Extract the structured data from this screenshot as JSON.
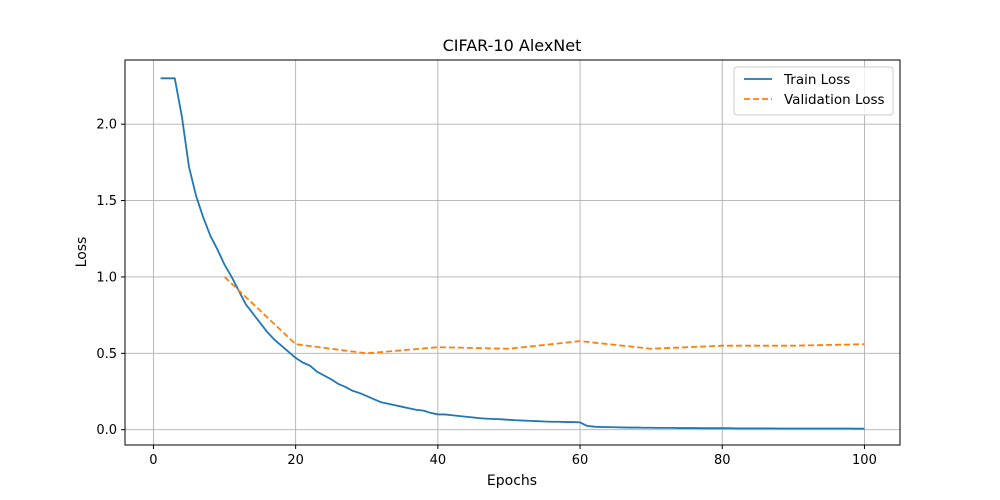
{
  "chart_data": {
    "type": "line",
    "title": "CIFAR-10 AlexNet",
    "xlabel": "Epochs",
    "ylabel": "Loss",
    "xlim": [
      -4,
      105
    ],
    "ylim": [
      -0.1,
      2.42
    ],
    "xticks": [
      0,
      20,
      40,
      60,
      80,
      100
    ],
    "yticks": [
      0.0,
      0.5,
      1.0,
      1.5,
      2.0
    ],
    "xtick_labels": [
      "0",
      "20",
      "40",
      "60",
      "80",
      "100"
    ],
    "ytick_labels": [
      "0.0",
      "0.5",
      "1.0",
      "1.5",
      "2.0"
    ],
    "grid": true,
    "legend_position": "top-right",
    "series": [
      {
        "name": "Train Loss",
        "color": "#1f77b4",
        "style": "solid",
        "x": [
          1,
          2,
          3,
          4,
          5,
          6,
          7,
          8,
          9,
          10,
          11,
          12,
          13,
          14,
          15,
          16,
          17,
          18,
          19,
          20,
          21,
          22,
          23,
          24,
          25,
          26,
          27,
          28,
          29,
          30,
          31,
          32,
          33,
          34,
          35,
          36,
          37,
          38,
          39,
          40,
          41,
          42,
          43,
          44,
          45,
          46,
          47,
          48,
          49,
          50,
          51,
          52,
          53,
          54,
          55,
          56,
          57,
          58,
          59,
          60,
          61,
          62,
          63,
          64,
          65,
          66,
          67,
          68,
          69,
          70,
          71,
          72,
          73,
          74,
          75,
          76,
          77,
          78,
          79,
          80,
          81,
          82,
          83,
          84,
          85,
          86,
          87,
          88,
          89,
          90,
          91,
          92,
          93,
          94,
          95,
          96,
          97,
          98,
          99,
          100
        ],
        "y": [
          2.3,
          2.3,
          2.3,
          2.05,
          1.72,
          1.53,
          1.39,
          1.27,
          1.18,
          1.08,
          1.0,
          0.91,
          0.82,
          0.76,
          0.7,
          0.64,
          0.59,
          0.55,
          0.51,
          0.47,
          0.44,
          0.42,
          0.38,
          0.355,
          0.33,
          0.3,
          0.28,
          0.255,
          0.24,
          0.22,
          0.2,
          0.18,
          0.17,
          0.16,
          0.15,
          0.14,
          0.13,
          0.125,
          0.11,
          0.1,
          0.1,
          0.095,
          0.09,
          0.085,
          0.08,
          0.075,
          0.072,
          0.07,
          0.068,
          0.065,
          0.062,
          0.06,
          0.058,
          0.056,
          0.054,
          0.052,
          0.052,
          0.05,
          0.05,
          0.048,
          0.025,
          0.02,
          0.018,
          0.017,
          0.016,
          0.015,
          0.014,
          0.014,
          0.013,
          0.013,
          0.012,
          0.012,
          0.012,
          0.011,
          0.011,
          0.011,
          0.01,
          0.01,
          0.01,
          0.01,
          0.01,
          0.009,
          0.009,
          0.009,
          0.009,
          0.009,
          0.009,
          0.008,
          0.008,
          0.008,
          0.008,
          0.008,
          0.008,
          0.008,
          0.008,
          0.008,
          0.008,
          0.008,
          0.007,
          0.007
        ]
      },
      {
        "name": "Validation Loss",
        "color": "#ff7f0e",
        "style": "dashed",
        "x": [
          10,
          20,
          30,
          40,
          50,
          60,
          70,
          80,
          90,
          100
        ],
        "y": [
          1.0,
          0.56,
          0.5,
          0.54,
          0.53,
          0.58,
          0.53,
          0.55,
          0.55,
          0.56
        ]
      }
    ]
  }
}
